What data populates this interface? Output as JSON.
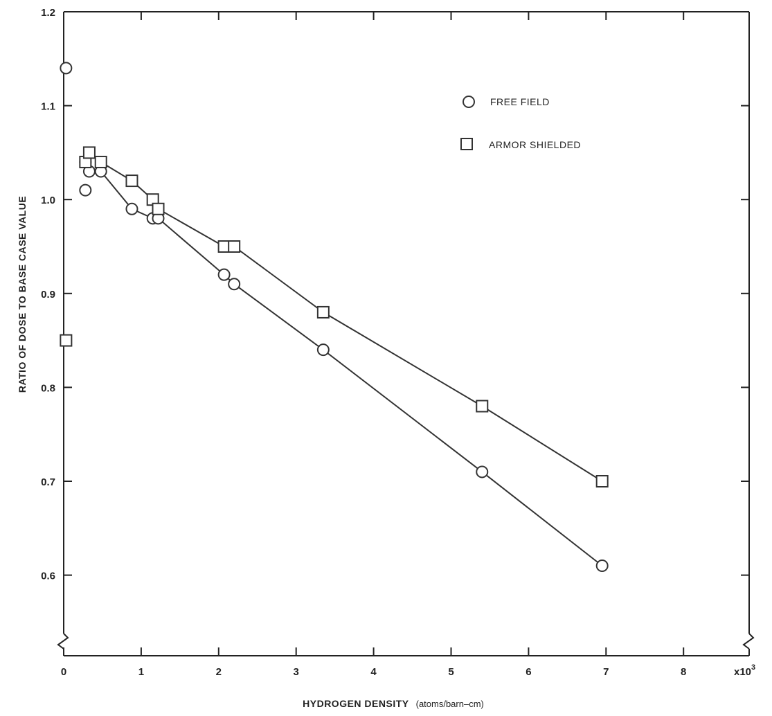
{
  "chart_data": {
    "type": "scatter",
    "xlabel": "HYDROGEN DENSITY",
    "xlabel_unit": "(atoms/barn–cm)",
    "ylabel": "RATIO OF DOSE TO BASE CASE VALUE",
    "x_multiplier_label": "x10",
    "x_multiplier_exponent": "3",
    "xlim": [
      0,
      9
    ],
    "ylim": [
      0.52,
      1.2
    ],
    "x_ticks": [
      0,
      1,
      2,
      3,
      4,
      5,
      6,
      7,
      8
    ],
    "x_tick_labels": [
      "0",
      "1",
      "2",
      "3",
      "4",
      "5",
      "6",
      "7",
      "8"
    ],
    "y_ticks": [
      0.6,
      0.7,
      0.8,
      0.9,
      1.0,
      1.1,
      1.2
    ],
    "y_tick_labels": [
      "0.6",
      "0.7",
      "0.8",
      "0.9",
      "1.0",
      "1.1",
      "1.2"
    ],
    "axis_break": true,
    "grid": false,
    "legend_position": "top-right",
    "series": [
      {
        "name": "FREE FIELD",
        "marker": "circle",
        "connected": [
          [
            0.28,
            1.04
          ],
          [
            0.33,
            1.03
          ],
          [
            0.48,
            1.03
          ],
          [
            0.88,
            0.99
          ],
          [
            1.15,
            0.98
          ],
          [
            1.22,
            0.98
          ],
          [
            2.07,
            0.92
          ],
          [
            2.2,
            0.91
          ],
          [
            3.35,
            0.84
          ],
          [
            5.4,
            0.71
          ],
          [
            6.95,
            0.61
          ]
        ],
        "isolated": [
          [
            0.03,
            1.14
          ],
          [
            0.28,
            1.01
          ]
        ]
      },
      {
        "name": "ARMOR SHIELDED",
        "marker": "square",
        "connected": [
          [
            0.28,
            1.04
          ],
          [
            0.33,
            1.05
          ],
          [
            0.48,
            1.04
          ],
          [
            0.88,
            1.02
          ],
          [
            1.15,
            1.0
          ],
          [
            1.22,
            0.99
          ],
          [
            2.07,
            0.95
          ],
          [
            2.2,
            0.95
          ],
          [
            3.35,
            0.88
          ],
          [
            5.4,
            0.78
          ],
          [
            6.95,
            0.7
          ]
        ],
        "isolated": [
          [
            0.03,
            0.85
          ]
        ]
      }
    ]
  }
}
